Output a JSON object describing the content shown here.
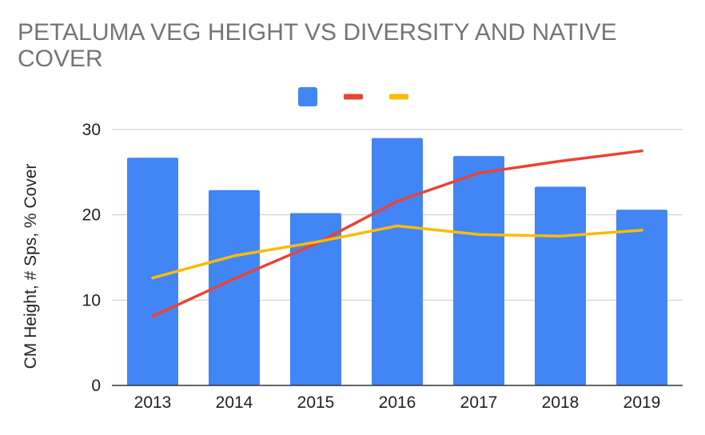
{
  "chart_data": {
    "type": "bar",
    "title": "PETALUMA VEG HEIGHT VS DIVERSITY AND NATIVE COVER",
    "xlabel": "",
    "ylabel": "CM Height, # Sps, % Cover",
    "categories": [
      "2013",
      "2014",
      "2015",
      "2016",
      "2017",
      "2018",
      "2019"
    ],
    "ylim": [
      0,
      30
    ],
    "yticks": [
      0,
      10,
      20,
      30
    ],
    "grid": true,
    "legend": "top",
    "series": [
      {
        "kind": "bar",
        "color": "#4285f4",
        "values": [
          26.7,
          22.9,
          20.2,
          29.0,
          26.9,
          23.3,
          20.6
        ]
      },
      {
        "kind": "line",
        "color": "#ea4335",
        "values": [
          8.1,
          12.5,
          16.6,
          21.6,
          24.9,
          26.3,
          27.5
        ]
      },
      {
        "kind": "line",
        "color": "#fbbc04",
        "values": [
          12.6,
          15.2,
          16.8,
          18.7,
          17.7,
          17.5,
          18.2
        ]
      }
    ]
  }
}
